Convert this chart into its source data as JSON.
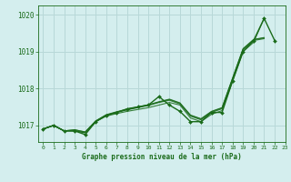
{
  "title": "Graphe pression niveau de la mer (hPa)",
  "background_color": "#d4eeee",
  "grid_color": "#b8d8d8",
  "line_color": "#1a6b1a",
  "xlim": [
    -0.5,
    23
  ],
  "ylim": [
    1016.55,
    1020.25
  ],
  "yticks": [
    1017,
    1018,
    1019,
    1020
  ],
  "xticks": [
    0,
    1,
    2,
    3,
    4,
    5,
    6,
    7,
    8,
    9,
    10,
    11,
    12,
    13,
    14,
    15,
    16,
    17,
    18,
    19,
    20,
    21,
    22,
    23
  ],
  "smooth_series": [
    [
      1016.9,
      1017.0,
      1016.85,
      1016.85,
      1016.8,
      1017.1,
      1017.25,
      1017.32,
      1017.38,
      1017.43,
      1017.48,
      1017.55,
      1017.62,
      1017.55,
      1017.2,
      1017.1,
      1017.3,
      1017.4,
      1018.2,
      1019.0,
      1019.25,
      1019.9
    ],
    [
      1016.9,
      1017.0,
      1016.85,
      1016.85,
      1016.8,
      1017.1,
      1017.27,
      1017.35,
      1017.42,
      1017.48,
      1017.54,
      1017.62,
      1017.68,
      1017.58,
      1017.25,
      1017.15,
      1017.35,
      1017.45,
      1018.25,
      1019.05,
      1019.3,
      1019.35
    ],
    [
      1016.9,
      1017.0,
      1016.85,
      1016.88,
      1016.82,
      1017.12,
      1017.28,
      1017.36,
      1017.43,
      1017.49,
      1017.55,
      1017.63,
      1017.7,
      1017.6,
      1017.27,
      1017.17,
      1017.37,
      1017.47,
      1018.27,
      1019.07,
      1019.32,
      1019.37
    ],
    [
      1016.9,
      1017.0,
      1016.85,
      1016.88,
      1016.82,
      1017.12,
      1017.29,
      1017.37,
      1017.44,
      1017.5,
      1017.56,
      1017.64,
      1017.71,
      1017.61,
      1017.28,
      1017.18,
      1017.38,
      1017.48,
      1018.28,
      1019.08,
      1019.33,
      1019.38
    ]
  ],
  "main_x": [
    0,
    1,
    2,
    3,
    4,
    5,
    6,
    7,
    8,
    9,
    10,
    11,
    12,
    13,
    14,
    15,
    16,
    17,
    18,
    19,
    20,
    21,
    22
  ],
  "main_y": [
    1016.9,
    1017.0,
    1016.85,
    1016.85,
    1016.75,
    1017.1,
    1017.27,
    1017.35,
    1017.45,
    1017.5,
    1017.55,
    1017.78,
    1017.55,
    1017.38,
    1017.1,
    1017.1,
    1017.35,
    1017.35,
    1018.2,
    1019.0,
    1019.3,
    1019.9,
    1019.3
  ]
}
